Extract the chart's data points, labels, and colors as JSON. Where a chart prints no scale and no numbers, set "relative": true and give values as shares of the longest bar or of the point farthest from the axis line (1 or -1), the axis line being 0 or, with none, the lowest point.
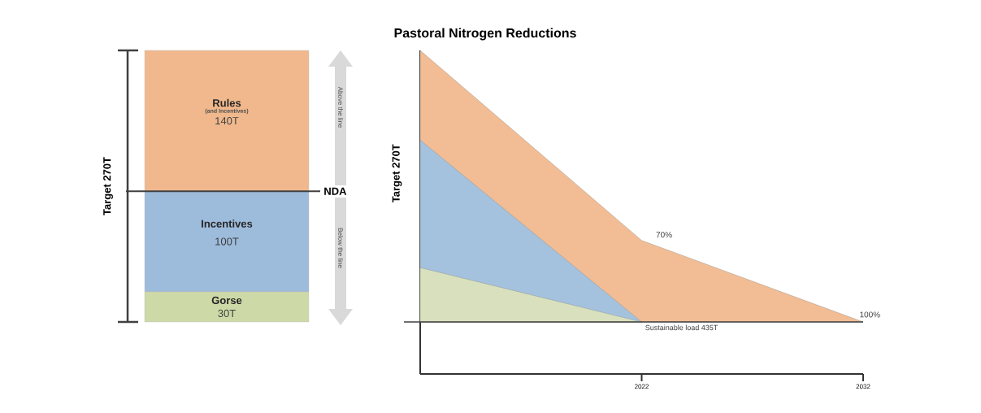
{
  "chart_data": [
    {
      "type": "bar",
      "stacked": true,
      "categories": [
        null
      ],
      "ylim": [
        0,
        270
      ],
      "ylabel": "Target 270T",
      "tick_labels": false,
      "series": [
        {
          "name": "Gorse",
          "color": "#cdd9a6",
          "values": [
            30
          ],
          "value_labels": [
            "30T"
          ]
        },
        {
          "name": "Incentives",
          "color": "#9dbbdb",
          "values": [
            100
          ],
          "value_labels": [
            "100T"
          ]
        },
        {
          "name": "Rules",
          "color": "#f0b88c",
          "values": [
            140
          ],
          "value_labels": [
            "140T"
          ]
        }
      ],
      "ref_lines": [
        {
          "axis": "y",
          "value": 130,
          "label": "NDA"
        }
      ],
      "annotations": [
        "(and Incentives)",
        "Above the line",
        "Below the line"
      ]
    },
    {
      "type": "area",
      "title": "Pastoral Nitrogen Reductions",
      "relative": true,
      "x": [
        2012,
        2022,
        2032
      ],
      "xlim": [
        2012,
        2032
      ],
      "xticks": [
        2022,
        2032
      ],
      "tick_labels": "x",
      "ylabel": "Target 270T",
      "series": [
        {
          "color": "#f2bd94",
          "values": [
            1,
            0.3,
            0
          ]
        },
        {
          "color": "#a4c2de",
          "values": [
            0.67,
            0,
            null
          ]
        },
        {
          "color": "#d8e0be",
          "values": [
            0.2,
            0,
            null
          ]
        }
      ],
      "ref_lines": [
        {
          "axis": "y",
          "value": 0,
          "label": "Sustainable load 435T"
        }
      ],
      "annotations": [
        {
          "text": "70%",
          "x": 2022,
          "y": 0.3
        },
        {
          "text": "100%",
          "x": 2032,
          "y": 0
        }
      ]
    }
  ]
}
